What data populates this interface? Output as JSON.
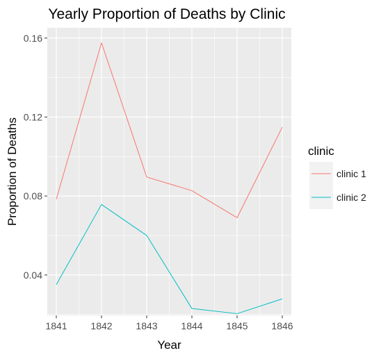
{
  "chart_data": {
    "type": "line",
    "title": "Yearly Proportion of Deaths by Clinic",
    "xlabel": "Year",
    "ylabel": "Proportion of Deaths",
    "x": [
      1841,
      1842,
      1843,
      1844,
      1845,
      1846
    ],
    "x_tick_labels": [
      "1841",
      "1842",
      "1843",
      "1844",
      "1845",
      "1846"
    ],
    "xlim": [
      1840.8,
      1846.2
    ],
    "ylim": [
      0.0195,
      0.1652
    ],
    "y_ticks": [
      0.04,
      0.08,
      0.12,
      0.16
    ],
    "y_tick_labels": [
      "0.04",
      "0.08",
      "0.12",
      "0.16"
    ],
    "grid": true,
    "legend": {
      "title": "clinic",
      "position": "right"
    },
    "series": [
      {
        "name": "clinic 1",
        "color": "#F8766D",
        "values": [
          0.0784,
          0.1576,
          0.0896,
          0.0827,
          0.069,
          0.1149
        ]
      },
      {
        "name": "clinic 2",
        "color": "#00BFC4",
        "values": [
          0.0351,
          0.0757,
          0.06,
          0.023,
          0.0204,
          0.0279
        ]
      }
    ],
    "panel_background": "#EBEBEB",
    "grid_color": "#FFFFFF",
    "text_color": "#000000",
    "tick_label_color": "#4D4D4D"
  }
}
